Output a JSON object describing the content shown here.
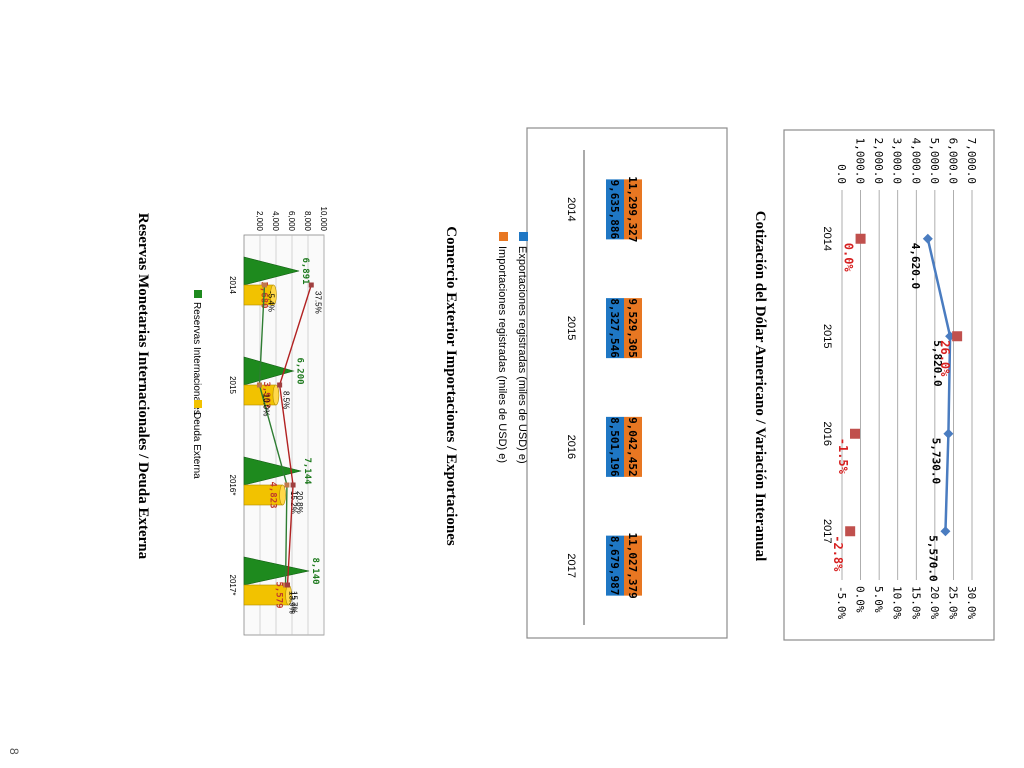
{
  "page_number": "8",
  "chart_data": [
    {
      "type": "line",
      "title": "Cotización del Dólar Americano / Variación Interanual",
      "categories": [
        "2014",
        "2015",
        "2016",
        "2017"
      ],
      "y_left_ticks": [
        "0.0",
        "1,000.0",
        "2,000.0",
        "3,000.0",
        "4,000.0",
        "5,000.0",
        "6,000.0",
        "7,000.0"
      ],
      "y_right_ticks": [
        "-5.0%",
        "0.0%",
        "5.0%",
        "10.0%",
        "15.0%",
        "20.0%",
        "25.0%",
        "30.0%"
      ],
      "ylim_left": [
        0,
        7000
      ],
      "ylim_right": [
        -5,
        30
      ],
      "grid": true,
      "series": [
        {
          "axis": "left",
          "color": "#4a7cc0",
          "marker": "diamond",
          "values": [
            4620.0,
            5820.0,
            5730.0,
            5570.0
          ],
          "labels": [
            "4,620.0",
            "5,820.0",
            "5,730.0",
            "5,570.0"
          ]
        },
        {
          "axis": "right",
          "color": "#c0504d",
          "marker": "square",
          "values": [
            0.0,
            26.0,
            -1.5,
            -2.8
          ],
          "labels": [
            "0.0%",
            "26.0%",
            "-1.5%",
            "-2.8%"
          ]
        }
      ]
    },
    {
      "type": "bar",
      "title": "Comercio Exterior Importaciones / Exportaciones",
      "categories": [
        "2014",
        "2015",
        "2016",
        "2017"
      ],
      "legend_position": "top",
      "series": [
        {
          "name": "Importaciones registradas (miles de USD) e)",
          "color": "#e87722",
          "values": [
            11299327,
            9529305,
            9042452,
            11027379
          ],
          "labels": [
            "11,299,327",
            "9,529,305",
            "9,042,452",
            "11,027,379"
          ]
        },
        {
          "name": "Exportaciones registradas (miles de USD) e)",
          "color": "#1f77c4",
          "values": [
            9635886,
            8327546,
            8501196,
            8679987
          ],
          "labels": [
            "9,635,886",
            "8,327,546",
            "8,501,196",
            "8,679,987"
          ]
        }
      ]
    },
    {
      "type": "bar",
      "title": "Reservas Monetarias Internacionales / Deuda Externa",
      "categories": [
        "2014",
        "2015",
        "2016*",
        "2017*"
      ],
      "y_ticks": [
        "2,000",
        "4,000",
        "6,000",
        "8,000",
        "10,000"
      ],
      "ylim": [
        0,
        10000
      ],
      "legend_position": "bottom",
      "series": [
        {
          "name": "Reservas Internacionales",
          "color": "#1e8a1e",
          "shape": "cone",
          "values": [
            6891,
            6200,
            7144,
            8140
          ],
          "labels": [
            "6,891",
            "6,200",
            "7,144",
            "8,140"
          ]
        },
        {
          "name": "Deuda Externa",
          "color": "#f2c200",
          "shape": "cylinder",
          "values": [
            3680,
            3993,
            4823,
            5579
          ],
          "labels": [
            "3,680",
            "3,993",
            "4,823",
            "5,579"
          ]
        }
      ],
      "line_series": [
        {
          "color": "#2e7d32",
          "labels": [
            "-5.4%",
            "-10.0%",
            "15.2%",
            "13.9%"
          ],
          "values": [
            -5.4,
            -10.0,
            15.2,
            13.9
          ]
        },
        {
          "color": "#b22222",
          "labels": [
            "37.5%",
            "8.5%",
            "20.8%",
            "15.7%"
          ],
          "values": [
            37.5,
            8.5,
            20.8,
            15.7
          ]
        }
      ]
    }
  ]
}
